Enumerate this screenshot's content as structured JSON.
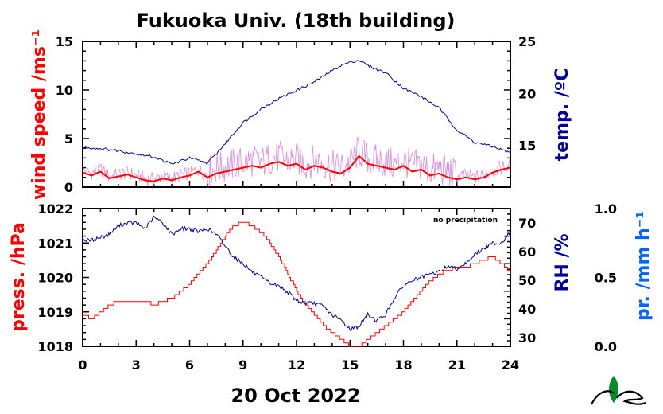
{
  "title": "Fukuoka Univ. (18th building)",
  "date_label": "20 Oct 2022",
  "no_precip_label": "no precipitation",
  "colors": {
    "wind_mean": "#ff0000",
    "wind_raw": "#cc66cc",
    "temperature": "#000099",
    "pressure": "#ff0000",
    "humidity": "#000099",
    "precip_axis": "#0066ff"
  },
  "chart_data": [
    {
      "type": "line",
      "panel": "top",
      "ylabel_left": "wind speed /ms⁻¹",
      "ylabel_right": "temp. /ºC",
      "xlim": [
        0,
        24
      ],
      "ylim_left": [
        0,
        15
      ],
      "ylim_right": [
        11,
        25
      ],
      "yticks_left": [
        "0",
        "5",
        "10",
        "15"
      ],
      "yticks_right": [
        "15",
        "20",
        "25"
      ],
      "series": [
        {
          "axis": "right",
          "x": [
            0,
            1,
            2,
            3,
            4,
            5,
            6,
            7,
            7.5,
            8,
            8.5,
            9,
            10,
            11,
            12,
            13,
            14,
            14.5,
            15,
            15.5,
            16,
            16.5,
            17,
            18,
            19,
            20,
            21,
            22,
            23,
            24
          ],
          "y": [
            14.8,
            14.7,
            14.5,
            14.2,
            13.9,
            13.2,
            13.8,
            13.3,
            14.2,
            15.2,
            16.2,
            17.2,
            18.5,
            19.5,
            20.3,
            21.1,
            22.2,
            22.7,
            23.0,
            23.2,
            22.7,
            22.3,
            22.0,
            20.5,
            19.7,
            18.6,
            16.5,
            15.3,
            14.9,
            14.3
          ]
        },
        {
          "axis": "left",
          "x": [
            0,
            0.5,
            1,
            1.5,
            2,
            2.5,
            3,
            3.5,
            4,
            4.5,
            5,
            5.5,
            6,
            6.5,
            7,
            7.5,
            8,
            8.5,
            9,
            9.5,
            10,
            10.5,
            11,
            11.5,
            12,
            12.5,
            13,
            13.5,
            14,
            14.5,
            15,
            15.5,
            16,
            16.5,
            17,
            17.5,
            18,
            18.5,
            19,
            19.5,
            20,
            20.5,
            21,
            21.5,
            22,
            22.5,
            23,
            23.5,
            24
          ],
          "y": [
            1.5,
            1.2,
            1.6,
            0.9,
            1.1,
            1.3,
            1.0,
            0.7,
            0.6,
            0.9,
            0.7,
            1.0,
            1.2,
            1.6,
            1.0,
            1.4,
            1.6,
            1.8,
            2.0,
            2.2,
            2.0,
            2.4,
            2.6,
            2.2,
            2.4,
            1.8,
            2.2,
            2.0,
            1.6,
            1.4,
            2.0,
            3.2,
            2.4,
            2.2,
            2.0,
            1.8,
            2.2,
            1.6,
            1.8,
            1.2,
            1.4,
            1.0,
            0.8,
            1.0,
            0.8,
            1.0,
            1.5,
            1.8,
            2.0
          ]
        }
      ]
    },
    {
      "type": "line",
      "panel": "bottom",
      "ylabel_left": "press. /hPa",
      "ylabel_right": "RH /%",
      "ylabel_right2": "pr. /mm h⁻¹",
      "xlim": [
        0,
        24
      ],
      "ylim_left": [
        1018,
        1022
      ],
      "ylim_right": [
        27,
        75
      ],
      "ylim_right2": [
        0.0,
        1.0
      ],
      "yticks_left": [
        "1018",
        "1019",
        "1020",
        "1021",
        "1022"
      ],
      "yticks_right": [
        "30",
        "40",
        "50",
        "60",
        "70"
      ],
      "yticks_right2": [
        "0.0",
        "0.5",
        "1.0"
      ],
      "xticks": [
        "0",
        "3",
        "6",
        "9",
        "12",
        "15",
        "18",
        "21",
        "24"
      ],
      "series": [
        {
          "axis": "left",
          "x": [
            0,
            0.5,
            1,
            1.5,
            2,
            2.5,
            3,
            3.5,
            4,
            4.5,
            5,
            5.5,
            6,
            6.5,
            7,
            7.5,
            8,
            8.5,
            9,
            9.5,
            10,
            10.5,
            11,
            11.5,
            12,
            12.5,
            13,
            13.5,
            14,
            14.5,
            15,
            15.5,
            16,
            16.5,
            17,
            17.5,
            18,
            18.5,
            19,
            19.5,
            20,
            20.5,
            21,
            21.5,
            22,
            22.5,
            23,
            23.5,
            24
          ],
          "y": [
            1018.9,
            1018.8,
            1019.0,
            1019.2,
            1019.3,
            1019.3,
            1019.3,
            1019.3,
            1019.2,
            1019.3,
            1019.4,
            1019.6,
            1019.8,
            1020.1,
            1020.4,
            1020.8,
            1021.2,
            1021.5,
            1021.6,
            1021.5,
            1021.3,
            1021.0,
            1020.6,
            1020.1,
            1019.6,
            1019.2,
            1018.9,
            1018.6,
            1018.4,
            1018.2,
            1018.0,
            1018.0,
            1018.2,
            1018.4,
            1018.6,
            1018.8,
            1019.0,
            1019.3,
            1019.6,
            1019.9,
            1020.1,
            1020.2,
            1020.3,
            1020.3,
            1020.4,
            1020.5,
            1020.6,
            1020.4,
            1020.1
          ]
        },
        {
          "axis": "right",
          "x": [
            0,
            0.5,
            1,
            1.5,
            2,
            2.5,
            3,
            3.5,
            4,
            4.5,
            5,
            5.5,
            6,
            6.5,
            7,
            7.5,
            8,
            8.5,
            9,
            9.5,
            10,
            10.5,
            11,
            11.5,
            12,
            12.5,
            13,
            13.5,
            14,
            14.5,
            15,
            15.5,
            16,
            16.5,
            17,
            17.5,
            18,
            18.5,
            19,
            19.5,
            20,
            20.5,
            21,
            21.5,
            22,
            22.5,
            23,
            23.5,
            24
          ],
          "y": [
            64,
            64,
            65,
            66,
            69,
            70,
            70,
            68,
            72,
            70,
            66,
            68,
            68,
            67,
            68,
            66,
            62,
            58,
            56,
            53,
            51,
            49,
            48,
            46,
            43,
            42,
            42,
            41,
            38,
            36,
            33,
            34,
            38,
            36,
            38,
            44,
            48,
            50,
            51,
            52,
            53,
            55,
            54,
            56,
            59,
            61,
            63,
            63,
            67
          ]
        }
      ]
    }
  ]
}
